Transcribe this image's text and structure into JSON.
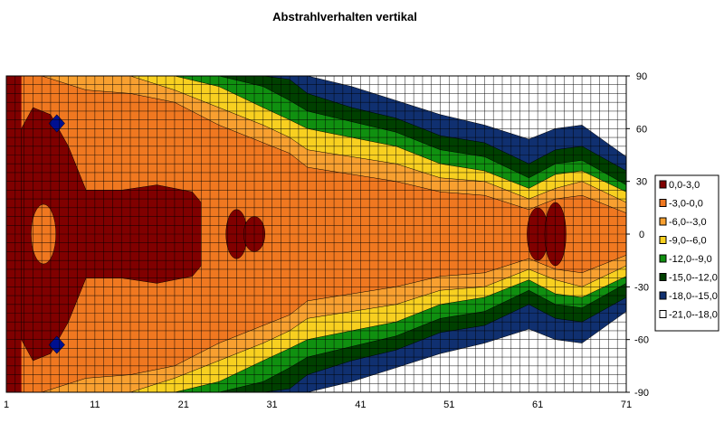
{
  "chart_data": {
    "type": "heatmap",
    "title": "Abstrahlverhalten vertikal",
    "xlabel": "",
    "ylabel": "",
    "x_ticks": [
      "1",
      "11",
      "21",
      "31",
      "41",
      "51",
      "61",
      "71"
    ],
    "y_ticks": [
      "90",
      "60",
      "30",
      "0",
      "-30",
      "-60",
      "-90"
    ],
    "xlim": [
      1,
      71
    ],
    "ylim": [
      -90,
      90
    ],
    "grid": true,
    "legend_position": "right",
    "legend": [
      {
        "label": "0,0-3,0",
        "color": "#800000"
      },
      {
        "label": "-3,0-0,0",
        "color": "#f07820"
      },
      {
        "label": "-6,0--3,0",
        "color": "#f8a030"
      },
      {
        "label": "-9,0--6,0",
        "color": "#f8d020"
      },
      {
        "label": "-12,0--9,0",
        "color": "#109010"
      },
      {
        "label": "-15,0--12,0",
        "color": "#004000"
      },
      {
        "label": "-18,0--15,0",
        "color": "#103070"
      },
      {
        "label": "-21,0--18,0",
        "color": "#ffffff"
      }
    ],
    "band_half_widths_deg": {
      "x": [
        1,
        5,
        10,
        15,
        20,
        25,
        30,
        33,
        35,
        40,
        45,
        50,
        55,
        60,
        63,
        66,
        71
      ],
      "series": [
        {
          "name": "-3,0-0,0",
          "values": [
            90,
            90,
            82,
            80,
            75,
            62,
            52,
            46,
            38,
            34,
            30,
            24,
            22,
            14,
            20,
            22,
            12
          ]
        },
        {
          "name": "-6,0--3,0",
          "values": [
            90,
            90,
            90,
            90,
            82,
            72,
            62,
            55,
            48,
            44,
            40,
            32,
            30,
            20,
            26,
            30,
            18
          ]
        },
        {
          "name": "-9,0--6,0",
          "values": [
            90,
            90,
            90,
            90,
            90,
            84,
            72,
            65,
            60,
            55,
            50,
            40,
            36,
            26,
            34,
            36,
            24
          ]
        },
        {
          "name": "-12,0--9,0",
          "values": [
            90,
            90,
            90,
            90,
            90,
            90,
            84,
            76,
            70,
            64,
            58,
            48,
            44,
            32,
            40,
            42,
            28
          ]
        },
        {
          "name": "-15,0--12,0",
          "values": [
            90,
            90,
            90,
            90,
            90,
            90,
            90,
            88,
            80,
            72,
            66,
            56,
            52,
            40,
            48,
            50,
            36
          ]
        },
        {
          "name": "-18,0--15,0",
          "values": [
            90,
            90,
            90,
            90,
            90,
            90,
            90,
            90,
            90,
            84,
            76,
            68,
            62,
            54,
            60,
            62,
            44
          ]
        }
      ]
    }
  }
}
